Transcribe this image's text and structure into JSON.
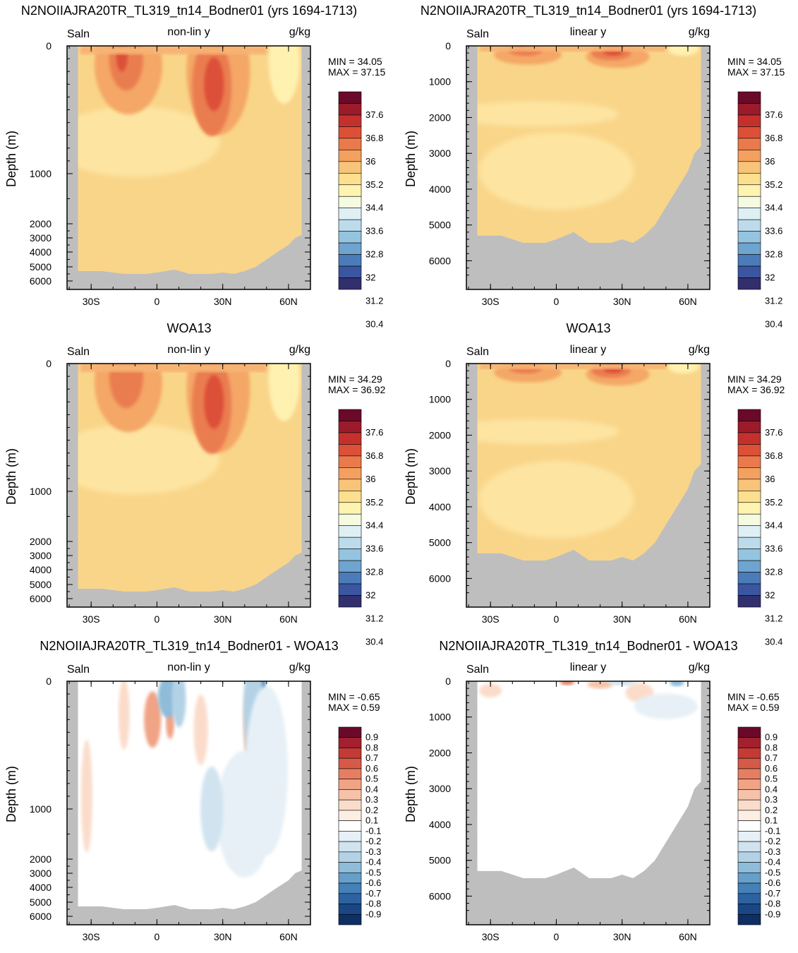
{
  "chart_data": [
    {
      "type": "contour",
      "title": "N2NOIIAJRA20TR_TL319_tn14_Bodner01 (yrs 1694-1713)",
      "left_label": "Saln",
      "center_label": "non-lin y",
      "right_label": "g/kg",
      "ylabel": "Depth (m)",
      "yticks": [
        "0",
        "1000",
        "2000",
        "3000",
        "4000",
        "5000",
        "6000"
      ],
      "xticks": [
        "30S",
        "0",
        "30N",
        "60N"
      ],
      "min_text": "MIN =  34.05",
      "max_text": "MAX =  37.15",
      "colorbar": [
        "37.6",
        "36.8",
        "36",
        "35.2",
        "34.4",
        "33.6",
        "32.8",
        "32",
        "31.2",
        "30.4"
      ],
      "kind": "abs",
      "yscale": "nonlinear"
    },
    {
      "type": "contour",
      "title": "N2NOIIAJRA20TR_TL319_tn14_Bodner01 (yrs 1694-1713)",
      "left_label": "Saln",
      "center_label": "linear y",
      "right_label": "g/kg",
      "ylabel": "Depth (m)",
      "yticks": [
        "0",
        "1000",
        "2000",
        "3000",
        "4000",
        "5000",
        "6000"
      ],
      "xticks": [
        "30S",
        "0",
        "30N",
        "60N"
      ],
      "min_text": "MIN =  34.05",
      "max_text": "MAX =  37.15",
      "colorbar": [
        "37.6",
        "36.8",
        "36",
        "35.2",
        "34.4",
        "33.6",
        "32.8",
        "32",
        "31.2",
        "30.4"
      ],
      "kind": "abs",
      "yscale": "linear"
    },
    {
      "type": "contour",
      "title": "WOA13",
      "left_label": "Saln",
      "center_label": "non-lin y",
      "right_label": "g/kg",
      "ylabel": "Depth (m)",
      "yticks": [
        "0",
        "1000",
        "2000",
        "3000",
        "4000",
        "5000",
        "6000"
      ],
      "xticks": [
        "30S",
        "0",
        "30N",
        "60N"
      ],
      "min_text": "MIN =  34.29",
      "max_text": "MAX =  36.92",
      "colorbar": [
        "37.6",
        "36.8",
        "36",
        "35.2",
        "34.4",
        "33.6",
        "32.8",
        "32",
        "31.2",
        "30.4"
      ],
      "kind": "abs",
      "yscale": "nonlinear"
    },
    {
      "type": "contour",
      "title": "WOA13",
      "left_label": "Saln",
      "center_label": "linear y",
      "right_label": "g/kg",
      "ylabel": "Depth (m)",
      "yticks": [
        "0",
        "1000",
        "2000",
        "3000",
        "4000",
        "5000",
        "6000"
      ],
      "xticks": [
        "30S",
        "0",
        "30N",
        "60N"
      ],
      "min_text": "MIN =  34.29",
      "max_text": "MAX =  36.92",
      "colorbar": [
        "37.6",
        "36.8",
        "36",
        "35.2",
        "34.4",
        "33.6",
        "32.8",
        "32",
        "31.2",
        "30.4"
      ],
      "kind": "abs",
      "yscale": "linear"
    },
    {
      "type": "contour",
      "title": "N2NOIIAJRA20TR_TL319_tn14_Bodner01 - WOA13",
      "left_label": "Saln",
      "center_label": "non-lin y",
      "right_label": "g/kg",
      "ylabel": "Depth (m)",
      "yticks": [
        "0",
        "1000",
        "2000",
        "3000",
        "4000",
        "5000",
        "6000"
      ],
      "xticks": [
        "30S",
        "0",
        "30N",
        "60N"
      ],
      "min_text": "MIN =  -0.65",
      "max_text": "MAX =   0.59",
      "colorbar": [
        "0.9",
        "0.8",
        "0.7",
        "0.6",
        "0.5",
        "0.4",
        "0.3",
        "0.2",
        "0.1",
        "-0.1",
        "-0.2",
        "-0.3",
        "-0.4",
        "-0.5",
        "-0.6",
        "-0.7",
        "-0.8",
        "-0.9"
      ],
      "kind": "diff",
      "yscale": "nonlinear"
    },
    {
      "type": "contour",
      "title": "N2NOIIAJRA20TR_TL319_tn14_Bodner01 - WOA13",
      "left_label": "Saln",
      "center_label": "linear y",
      "right_label": "g/kg",
      "ylabel": "Depth (m)",
      "yticks": [
        "0",
        "1000",
        "2000",
        "3000",
        "4000",
        "5000",
        "6000"
      ],
      "xticks": [
        "30S",
        "0",
        "30N",
        "60N"
      ],
      "min_text": "MIN =  -0.65",
      "max_text": "MAX =   0.59",
      "colorbar": [
        "0.9",
        "0.8",
        "0.7",
        "0.6",
        "0.5",
        "0.4",
        "0.3",
        "0.2",
        "0.1",
        "-0.1",
        "-0.2",
        "-0.3",
        "-0.4",
        "-0.5",
        "-0.6",
        "-0.7",
        "-0.8",
        "-0.9"
      ],
      "kind": "diff",
      "yscale": "linear"
    }
  ],
  "colors": {
    "land": "#bebebe",
    "abs_scale": [
      "#6a0a28",
      "#9b1b2b",
      "#c4312d",
      "#dc5038",
      "#ea7a4c",
      "#f4a05e",
      "#f8c479",
      "#fde08f",
      "#fff3b0",
      "#f5fbe0",
      "#dff0f5",
      "#bcdcec",
      "#94c4df",
      "#6ea4cf",
      "#4b7cb9",
      "#3a56a0",
      "#322f6e"
    ],
    "diff_scale": [
      "#6a0a28",
      "#a3202e",
      "#c43a36",
      "#d65a48",
      "#e57e63",
      "#f0a385",
      "#f6c3aa",
      "#fbdccb",
      "#fdeee4",
      "#ffffff",
      "#e6f0f6",
      "#d0e3ef",
      "#b3d2e6",
      "#8ebcd9",
      "#669fc9",
      "#4580b7",
      "#2d62a0",
      "#1a4784",
      "#0e2f63"
    ]
  }
}
